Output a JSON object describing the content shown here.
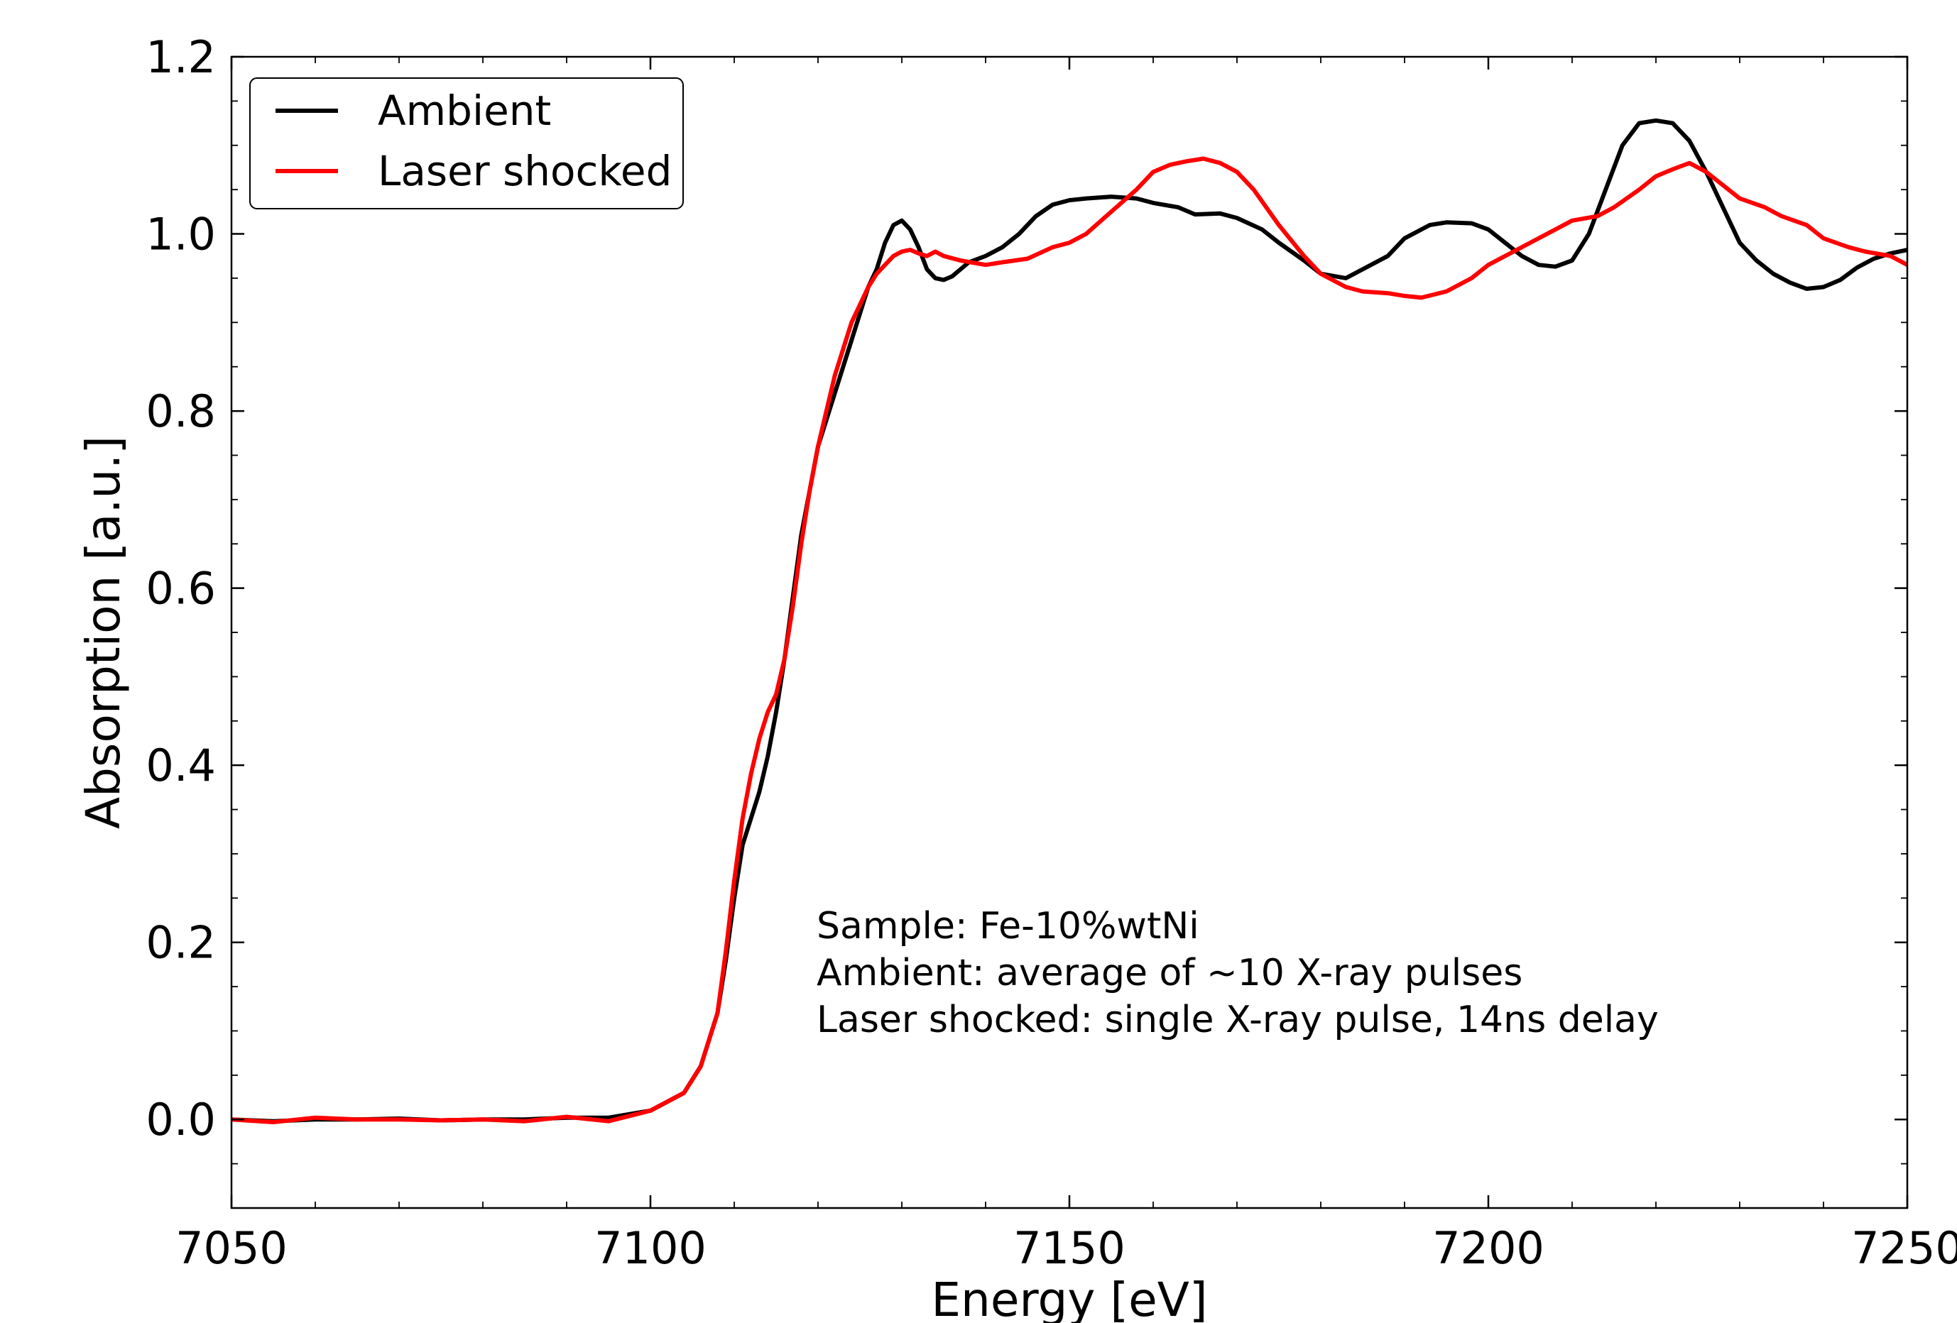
{
  "chart_data": {
    "type": "line",
    "title": "",
    "xlabel": "Energy [eV]",
    "ylabel": "Absorption [a.u.]",
    "xlim": [
      7050,
      7250
    ],
    "ylim": [
      -0.1,
      1.2
    ],
    "xticks": [
      7050,
      7100,
      7150,
      7200,
      7250
    ],
    "xtick_labels": [
      "7050",
      "7100",
      "7150",
      "7200",
      "7250"
    ],
    "yticks": [
      0.0,
      0.2,
      0.4,
      0.6,
      0.8,
      1.0,
      1.2
    ],
    "ytick_labels": [
      "0.0",
      "0.2",
      "0.4",
      "0.6",
      "0.8",
      "1.0",
      "1.2"
    ],
    "grid": false,
    "legend_position": "top-left",
    "annotations": [
      "Sample: Fe-10%wtNi",
      "Ambient: average of ~10 X-ray pulses",
      "Laser shocked: single X-ray pulse, 14ns delay"
    ],
    "series": [
      {
        "name": "Ambient",
        "color": "#000000",
        "x": [
          7050,
          7055,
          7060,
          7065,
          7070,
          7075,
          7080,
          7085,
          7090,
          7095,
          7100,
          7102,
          7104,
          7106,
          7108,
          7109,
          7110,
          7111,
          7112,
          7113,
          7114,
          7115,
          7116,
          7117,
          7118,
          7119,
          7120,
          7121,
          7122,
          7123,
          7124,
          7125,
          7126,
          7127,
          7128,
          7129,
          7130,
          7131,
          7132,
          7133,
          7134,
          7135,
          7136,
          7138,
          7140,
          7142,
          7144,
          7146,
          7148,
          7150,
          7152,
          7155,
          7158,
          7160,
          7163,
          7165,
          7168,
          7170,
          7173,
          7175,
          7178,
          7180,
          7183,
          7185,
          7188,
          7190,
          7193,
          7195,
          7198,
          7200,
          7202,
          7204,
          7206,
          7208,
          7210,
          7212,
          7214,
          7216,
          7218,
          7220,
          7222,
          7224,
          7226,
          7228,
          7230,
          7232,
          7234,
          7236,
          7238,
          7240,
          7242,
          7244,
          7246,
          7248,
          7250
        ],
        "y": [
          0.0,
          -0.002,
          0.0,
          0.0,
          0.001,
          -0.001,
          0.0,
          0.0,
          0.002,
          0.002,
          0.01,
          0.02,
          0.03,
          0.06,
          0.12,
          0.18,
          0.25,
          0.31,
          0.34,
          0.37,
          0.41,
          0.46,
          0.52,
          0.59,
          0.66,
          0.71,
          0.76,
          0.79,
          0.82,
          0.85,
          0.88,
          0.91,
          0.94,
          0.96,
          0.99,
          1.01,
          1.015,
          1.005,
          0.985,
          0.96,
          0.95,
          0.948,
          0.952,
          0.968,
          0.975,
          0.985,
          1.0,
          1.02,
          1.033,
          1.038,
          1.04,
          1.042,
          1.04,
          1.035,
          1.03,
          1.022,
          1.023,
          1.018,
          1.005,
          0.99,
          0.97,
          0.955,
          0.95,
          0.96,
          0.975,
          0.995,
          1.01,
          1.013,
          1.012,
          1.005,
          0.99,
          0.975,
          0.965,
          0.963,
          0.97,
          1.0,
          1.05,
          1.1,
          1.125,
          1.128,
          1.125,
          1.105,
          1.07,
          1.03,
          0.99,
          0.97,
          0.955,
          0.945,
          0.938,
          0.94,
          0.948,
          0.962,
          0.972,
          0.978,
          0.982
        ]
      },
      {
        "name": "Laser shocked",
        "color": "#ff0000",
        "x": [
          7050,
          7055,
          7060,
          7065,
          7070,
          7075,
          7080,
          7085,
          7090,
          7095,
          7100,
          7102,
          7104,
          7106,
          7108,
          7109,
          7110,
          7111,
          7112,
          7113,
          7114,
          7115,
          7116,
          7117,
          7118,
          7119,
          7120,
          7121,
          7122,
          7123,
          7124,
          7125,
          7126,
          7127,
          7128,
          7129,
          7130,
          7131,
          7132,
          7133,
          7134,
          7135,
          7137,
          7140,
          7142,
          7145,
          7148,
          7150,
          7152,
          7155,
          7158,
          7160,
          7162,
          7164,
          7166,
          7168,
          7170,
          7172,
          7175,
          7178,
          7180,
          7183,
          7185,
          7188,
          7190,
          7192,
          7195,
          7198,
          7200,
          7203,
          7205,
          7208,
          7210,
          7213,
          7215,
          7218,
          7220,
          7222,
          7224,
          7226,
          7228,
          7230,
          7233,
          7235,
          7238,
          7240,
          7243,
          7245,
          7248,
          7250
        ],
        "y": [
          0.0,
          -0.003,
          0.002,
          0.0,
          0.0,
          -0.001,
          0.0,
          -0.002,
          0.003,
          -0.002,
          0.01,
          0.02,
          0.03,
          0.06,
          0.12,
          0.19,
          0.27,
          0.34,
          0.39,
          0.43,
          0.46,
          0.48,
          0.52,
          0.58,
          0.65,
          0.71,
          0.76,
          0.8,
          0.84,
          0.87,
          0.9,
          0.92,
          0.94,
          0.955,
          0.965,
          0.975,
          0.98,
          0.982,
          0.978,
          0.975,
          0.98,
          0.975,
          0.97,
          0.965,
          0.968,
          0.972,
          0.985,
          0.99,
          1.0,
          1.025,
          1.05,
          1.07,
          1.078,
          1.082,
          1.085,
          1.08,
          1.07,
          1.05,
          1.01,
          0.975,
          0.955,
          0.94,
          0.935,
          0.933,
          0.93,
          0.928,
          0.935,
          0.95,
          0.965,
          0.98,
          0.99,
          1.005,
          1.015,
          1.02,
          1.03,
          1.05,
          1.065,
          1.073,
          1.08,
          1.07,
          1.055,
          1.04,
          1.03,
          1.02,
          1.01,
          0.995,
          0.985,
          0.98,
          0.975,
          0.965
        ]
      }
    ]
  }
}
